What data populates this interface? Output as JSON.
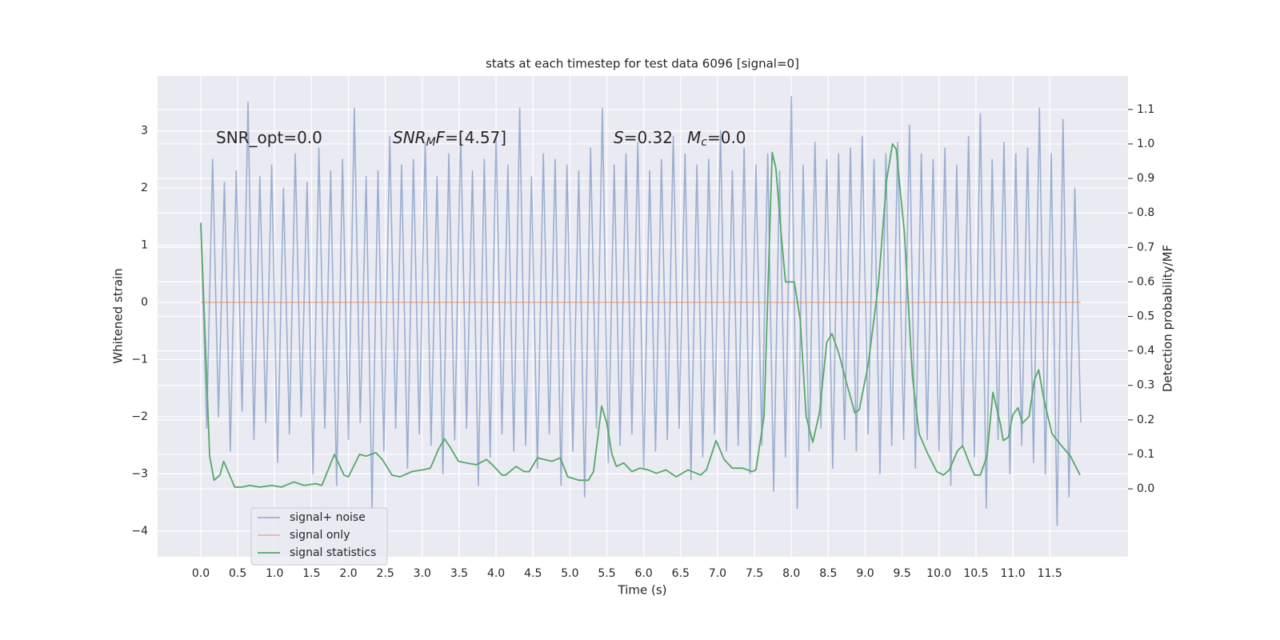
{
  "chart_data": {
    "type": "line",
    "title": "stats at each timestep for test data 6096 [signal=0]",
    "x_label": "Time (s)",
    "y_label": "Whitened strain",
    "y2_label": "Detection probability/MF",
    "annotations": [
      [
        "SNR_opt=0.0"
      ],
      [
        "SNR",
        "M",
        "F",
        "=[4.57]"
      ],
      [
        "S",
        "=0.32"
      ],
      [
        "M",
        "c",
        "=0.0"
      ]
    ],
    "xlim": [
      -0.585,
      12.56
    ],
    "ylim": [
      -4.45,
      3.96
    ],
    "y2lim": [
      -0.197,
      1.197
    ],
    "xticks": [
      {
        "value": 0,
        "label": "0.0"
      },
      0.5,
      {
        "value": 1,
        "label": "1.0"
      },
      1.5,
      {
        "value": 2,
        "label": "2.0"
      },
      2.5,
      {
        "value": 3,
        "label": "3.0"
      },
      3.5,
      {
        "value": 4,
        "label": "4.0"
      },
      4.5,
      {
        "value": 5,
        "label": "5.0"
      },
      5.5,
      {
        "value": 6,
        "label": "6.0"
      },
      6.5,
      {
        "value": 7,
        "label": "7.0"
      },
      7.5,
      {
        "value": 8,
        "label": "8.0"
      },
      8.5,
      {
        "value": 9,
        "label": "9.0"
      },
      9.5,
      {
        "value": 10,
        "label": "10.0"
      },
      10.5,
      {
        "value": 11,
        "label": "11.0"
      },
      11.5
    ],
    "yticks": [
      {
        "value": -4,
        "label": "−4"
      },
      {
        "value": -3,
        "label": "−3"
      },
      {
        "value": -2,
        "label": "−2"
      },
      {
        "value": -1,
        "label": "−1"
      },
      0,
      1,
      2,
      3
    ],
    "y2ticks": [
      {
        "value": 0,
        "label": "0.0"
      },
      0.1,
      0.2,
      0.3,
      0.4,
      0.5,
      0.6,
      0.7,
      0.8,
      0.9,
      {
        "value": 1,
        "label": "1.0"
      },
      1.1
    ],
    "grid": true,
    "legend": "lower left",
    "series": [
      {
        "name": "signal+ noise",
        "color": "#4c72b0",
        "axis": "y",
        "x": [
          0,
          0.08,
          0.16,
          0.24,
          0.32,
          0.4,
          0.48,
          0.56,
          0.64,
          0.72,
          0.8,
          0.88,
          0.96,
          1.04,
          1.12,
          1.2,
          1.28,
          1.36,
          1.44,
          1.52,
          1.6,
          1.68,
          1.76,
          1.84,
          1.92,
          2,
          2.08,
          2.16,
          2.24,
          2.32,
          2.4,
          2.48,
          2.56,
          2.64,
          2.72,
          2.8,
          2.88,
          2.96,
          3.04,
          3.12,
          3.2,
          3.28,
          3.36,
          3.44,
          3.52,
          3.6,
          3.68,
          3.76,
          3.84,
          3.92,
          4,
          4.08,
          4.16,
          4.24,
          4.32,
          4.4,
          4.48,
          4.56,
          4.64,
          4.72,
          4.8,
          4.88,
          4.96,
          5.04,
          5.12,
          5.2,
          5.28,
          5.36,
          5.44,
          5.52,
          5.6,
          5.68,
          5.76,
          5.84,
          5.92,
          6,
          6.08,
          6.16,
          6.24,
          6.32,
          6.4,
          6.48,
          6.56,
          6.64,
          6.72,
          6.8,
          6.88,
          6.96,
          7.04,
          7.12,
          7.2,
          7.28,
          7.36,
          7.44,
          7.52,
          7.6,
          7.68,
          7.76,
          7.84,
          7.92,
          8,
          8.08,
          8.16,
          8.24,
          8.32,
          8.4,
          8.48,
          8.56,
          8.64,
          8.72,
          8.8,
          8.88,
          8.96,
          9.04,
          9.12,
          9.2,
          9.28,
          9.36,
          9.44,
          9.52,
          9.6,
          9.68,
          9.76,
          9.84,
          9.92,
          10,
          10.08,
          10.16,
          10.24,
          10.32,
          10.4,
          10.48,
          10.56,
          10.64,
          10.72,
          10.8,
          10.88,
          10.96,
          11.04,
          11.12,
          11.2,
          11.28,
          11.36,
          11.44,
          11.52,
          11.6,
          11.68,
          11.76,
          11.84,
          11.92
        ],
        "values": [
          1.4,
          -2.2,
          2.5,
          -2.0,
          2.1,
          -2.6,
          2.3,
          -1.9,
          3.5,
          -2.4,
          2.2,
          -2.1,
          2.4,
          -2.8,
          2.0,
          -2.3,
          2.6,
          -2.0,
          2.1,
          -3.0,
          2.7,
          -2.2,
          2.3,
          -3.2,
          2.5,
          -2.4,
          3.4,
          -2.1,
          2.2,
          -3.6,
          2.3,
          -2.6,
          2.9,
          -2.2,
          2.4,
          -2.9,
          2.5,
          -2.3,
          2.8,
          -2.5,
          2.2,
          -3.0,
          2.6,
          -2.4,
          3.0,
          -2.2,
          2.3,
          -3.2,
          2.5,
          -2.7,
          2.9,
          -2.3,
          2.4,
          -2.6,
          3.4,
          -2.5,
          2.2,
          -2.9,
          2.6,
          -2.3,
          2.5,
          -3.2,
          2.4,
          -2.6,
          2.3,
          -3.4,
          2.7,
          -2.2,
          3.4,
          -2.8,
          2.4,
          -2.5,
          2.6,
          -2.3,
          2.8,
          -2.9,
          2.3,
          -2.6,
          2.5,
          -2.4,
          2.9,
          -2.2,
          2.6,
          -3.1,
          2.4,
          -2.7,
          2.5,
          -2.3,
          3.0,
          -2.6,
          2.3,
          -2.5,
          2.7,
          -3.0,
          2.4,
          -2.5,
          2.6,
          -3.3,
          2.3,
          -2.7,
          3.6,
          -3.6,
          2.4,
          -2.6,
          2.8,
          -2.2,
          2.5,
          -2.9,
          2.6,
          -2.4,
          2.7,
          -2.6,
          2.9,
          -2.3,
          2.5,
          -3.0,
          2.6,
          -2.5,
          2.8,
          -2.4,
          3.1,
          -2.9,
          2.6,
          -2.4,
          2.5,
          -2.6,
          2.7,
          -3.2,
          2.4,
          -2.5,
          2.9,
          -2.7,
          3.3,
          -3.6,
          2.5,
          -2.4,
          2.8,
          -3.0,
          2.6,
          -2.5,
          2.7,
          -2.8,
          3.4,
          -3.0,
          2.6,
          -3.9,
          3.2,
          -3.4,
          2.0,
          -2.1
        ]
      },
      {
        "name": "signal only",
        "color": "#dd8452",
        "axis": "y",
        "x": [
          0,
          11.92
        ],
        "values": [
          0,
          0
        ]
      },
      {
        "name": "signal statistics",
        "color": "#55a868",
        "axis": "y2",
        "x": [
          0,
          0.12,
          0.18,
          0.26,
          0.31,
          0.46,
          0.56,
          0.66,
          0.8,
          0.96,
          1.09,
          1.26,
          1.4,
          1.56,
          1.64,
          1.81,
          1.94,
          2,
          2.15,
          2.24,
          2.37,
          2.46,
          2.59,
          2.7,
          2.86,
          3,
          3.11,
          3.22,
          3.3,
          3.38,
          3.49,
          3.6,
          3.73,
          3.87,
          3.95,
          4.08,
          4.13,
          4.27,
          4.38,
          4.45,
          4.56,
          4.65,
          4.76,
          4.87,
          4.97,
          5.12,
          5.25,
          5.32,
          5.43,
          5.5,
          5.57,
          5.63,
          5.73,
          5.84,
          5.95,
          6.06,
          6.17,
          6.3,
          6.44,
          6.6,
          6.77,
          6.85,
          6.98,
          7.09,
          7.2,
          7.34,
          7.47,
          7.52,
          7.63,
          7.74,
          7.79,
          7.87,
          7.92,
          8.04,
          8.12,
          8.2,
          8.29,
          8.38,
          8.48,
          8.55,
          8.64,
          8.75,
          8.86,
          8.92,
          9.04,
          9.18,
          9.29,
          9.37,
          9.42,
          9.53,
          9.64,
          9.73,
          9.84,
          9.97,
          10.06,
          10.14,
          10.25,
          10.32,
          10.42,
          10.48,
          10.56,
          10.65,
          10.73,
          10.83,
          10.87,
          10.94,
          11,
          11.07,
          11.13,
          11.22,
          11.29,
          11.35,
          11.42,
          11.53,
          11.64,
          11.78,
          11.91
        ],
        "values": [
          0.77,
          0.095,
          0.025,
          0.04,
          0.08,
          0.005,
          0.005,
          0.01,
          0.005,
          0.01,
          0.005,
          0.02,
          0.01,
          0.015,
          0.01,
          0.1,
          0.04,
          0.035,
          0.1,
          0.095,
          0.105,
          0.085,
          0.04,
          0.035,
          0.05,
          0.055,
          0.06,
          0.115,
          0.145,
          0.12,
          0.08,
          0.075,
          0.07,
          0.085,
          0.07,
          0.04,
          0.04,
          0.065,
          0.05,
          0.05,
          0.09,
          0.085,
          0.08,
          0.09,
          0.035,
          0.025,
          0.025,
          0.05,
          0.24,
          0.19,
          0.1,
          0.065,
          0.075,
          0.05,
          0.06,
          0.055,
          0.045,
          0.055,
          0.035,
          0.055,
          0.04,
          0.055,
          0.14,
          0.085,
          0.06,
          0.06,
          0.05,
          0.055,
          0.21,
          0.975,
          0.93,
          0.72,
          0.6,
          0.6,
          0.49,
          0.21,
          0.135,
          0.22,
          0.425,
          0.45,
          0.395,
          0.305,
          0.22,
          0.23,
          0.36,
          0.595,
          0.895,
          1.0,
          0.985,
          0.745,
          0.325,
          0.16,
          0.105,
          0.05,
          0.04,
          0.055,
          0.11,
          0.125,
          0.07,
          0.04,
          0.04,
          0.095,
          0.28,
          0.19,
          0.14,
          0.15,
          0.215,
          0.235,
          0.19,
          0.21,
          0.315,
          0.345,
          0.26,
          0.16,
          0.13,
          0.095,
          0.04
        ]
      }
    ]
  }
}
